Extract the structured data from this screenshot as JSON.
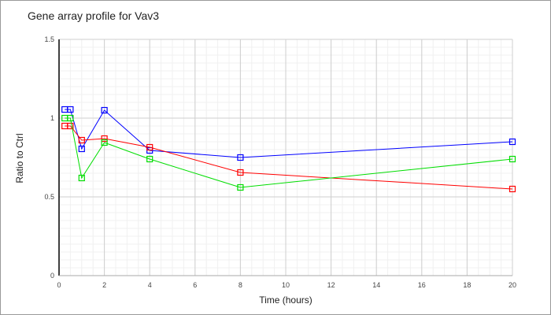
{
  "chart_data": {
    "type": "line",
    "title": "Gene array profile for Vav3",
    "xlabel": "Time (hours)",
    "ylabel": "Ratio to Ctrl",
    "xlim": [
      0,
      20
    ],
    "ylim": [
      0,
      1.5
    ],
    "xticks": [
      0,
      2,
      4,
      6,
      8,
      10,
      12,
      14,
      16,
      18,
      20
    ],
    "yticks": [
      0,
      0.5,
      1,
      1.5
    ],
    "ytick_labels": [
      "0",
      "0.5",
      "1",
      "1.5"
    ],
    "grid": true,
    "x": [
      0.25,
      0.5,
      1,
      2,
      4,
      8,
      20
    ],
    "series": [
      {
        "name": "blue",
        "color": "#0000ff",
        "values": [
          1.055,
          1.055,
          0.805,
          1.05,
          0.795,
          0.75,
          0.85
        ]
      },
      {
        "name": "red",
        "color": "#ff0000",
        "values": [
          0.95,
          0.95,
          0.86,
          0.87,
          0.815,
          0.655,
          0.55
        ]
      },
      {
        "name": "green",
        "color": "#00dd00",
        "values": [
          1.0,
          1.0,
          0.62,
          0.845,
          0.74,
          0.56,
          0.74
        ]
      }
    ]
  }
}
